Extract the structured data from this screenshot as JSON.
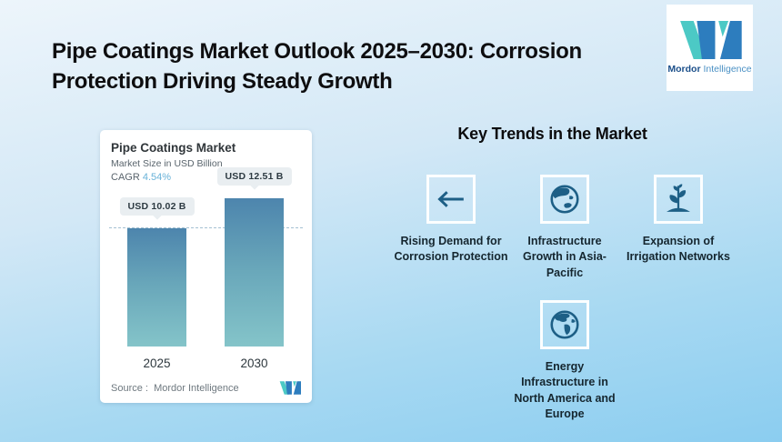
{
  "page": {
    "title": "Pipe Coatings Market Outlook 2025–2030: Corrosion Protection Driving Steady Growth"
  },
  "logo": {
    "brand_bold": "Mordor",
    "brand_light": "Intelligence"
  },
  "chart_card": {
    "title": "Pipe Coatings Market",
    "subtitle": "Market Size in USD Billion",
    "cagr_label": "CAGR",
    "cagr_value": "4.54%",
    "source_label": "Source :",
    "source_value": "Mordor Intelligence"
  },
  "chart_data": {
    "type": "bar",
    "title": "Pipe Coatings Market",
    "subtitle": "Market Size in USD Billion",
    "cagr": "4.54%",
    "unit": "USD Billion",
    "categories": [
      "2025",
      "2030"
    ],
    "values": [
      10.02,
      12.51
    ],
    "value_labels": [
      "USD 10.02 B",
      "USD 12.51 B"
    ],
    "reference_line": 10.02,
    "ylim": [
      0,
      13.5
    ],
    "grid": false,
    "legend": false,
    "source": "Mordor Intelligence"
  },
  "trends": {
    "heading": "Key Trends in the Market",
    "items": [
      {
        "icon": "arrow-left-icon",
        "label": "Rising Demand for Corrosion Protection"
      },
      {
        "icon": "globe-asia-icon",
        "label": "Infrastructure Growth in Asia-Pacific"
      },
      {
        "icon": "plant-icon",
        "label": "Expansion of Irrigation Networks"
      },
      {
        "icon": "globe-americas-icon",
        "label": "Energy Infrastructure in North America and Europe"
      }
    ]
  },
  "colors": {
    "icon_blue": "#1d5f86",
    "cagr_blue": "#68b2d8",
    "bar_top": "#4d85ad",
    "bar_bottom": "#84c4c9",
    "brand_blue": "#2d7dbe",
    "brand_teal": "#4cc9c5",
    "bg_top": "#edf5fb",
    "bg_bottom": "#8bcdf0"
  }
}
